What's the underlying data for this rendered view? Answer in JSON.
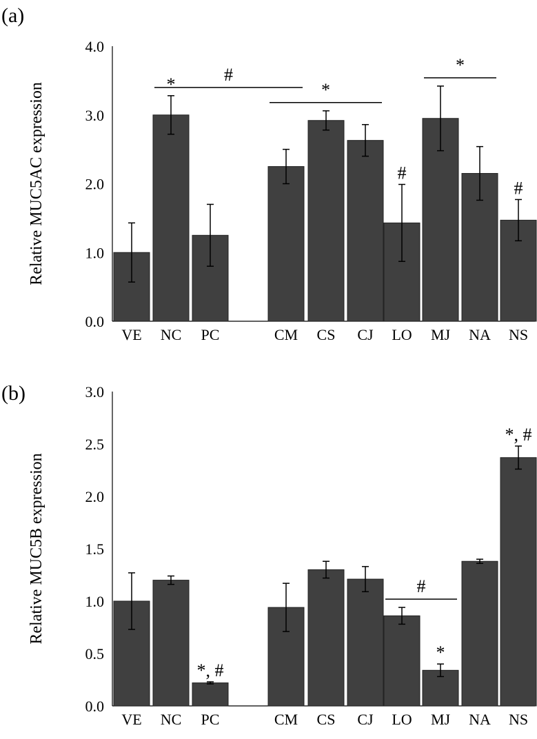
{
  "chart_data": [
    {
      "type": "bar",
      "panel_label": "(a)",
      "ylabel": "Relative MUC5AC expression",
      "ylim": [
        0,
        4
      ],
      "ytick_labels": [
        "0.0",
        "1.0",
        "2.0",
        "3.0",
        "4.0"
      ],
      "categories": [
        "VE",
        "NC",
        "PC",
        "CM",
        "CS",
        "CJ",
        "LO",
        "MJ",
        "NA",
        "NS"
      ],
      "values": [
        1.0,
        3.0,
        1.25,
        2.25,
        2.92,
        2.63,
        1.43,
        2.95,
        2.15,
        1.47
      ],
      "errors": [
        0.43,
        0.28,
        0.45,
        0.25,
        0.14,
        0.23,
        0.56,
        0.47,
        0.39,
        0.3
      ],
      "bar_color": "#404040",
      "annotations": [
        {
          "text": "*",
          "category": "NC"
        },
        {
          "text": "#",
          "category": "LO"
        },
        {
          "text": "#",
          "category": "NS"
        }
      ],
      "brackets": [
        {
          "text": "#",
          "from": "NC",
          "to": "CM"
        },
        {
          "text": "*",
          "from": "CM",
          "to": "CJ"
        },
        {
          "text": "*",
          "from": "MJ",
          "to": "NA"
        }
      ],
      "grid": false
    },
    {
      "type": "bar",
      "panel_label": "(b)",
      "ylabel": "Relative MUC5B expression",
      "ylim": [
        0,
        3
      ],
      "ytick_labels": [
        "0.0",
        "0.5",
        "1.0",
        "1.5",
        "2.0",
        "2.5",
        "3.0"
      ],
      "categories": [
        "VE",
        "NC",
        "PC",
        "CM",
        "CS",
        "CJ",
        "LO",
        "MJ",
        "NA",
        "NS"
      ],
      "values": [
        1.0,
        1.2,
        0.22,
        0.94,
        1.3,
        1.21,
        0.86,
        0.34,
        1.38,
        2.37
      ],
      "errors": [
        0.27,
        0.04,
        0.01,
        0.23,
        0.08,
        0.12,
        0.08,
        0.06,
        0.02,
        0.11
      ],
      "bar_color": "#404040",
      "annotations": [
        {
          "text": "*, #",
          "category": "PC"
        },
        {
          "text": "*",
          "category": "MJ"
        },
        {
          "text": "*, #",
          "category": "NS"
        }
      ],
      "brackets": [
        {
          "text": "#",
          "from": "LO",
          "to": "MJ"
        }
      ],
      "grid": false
    }
  ]
}
